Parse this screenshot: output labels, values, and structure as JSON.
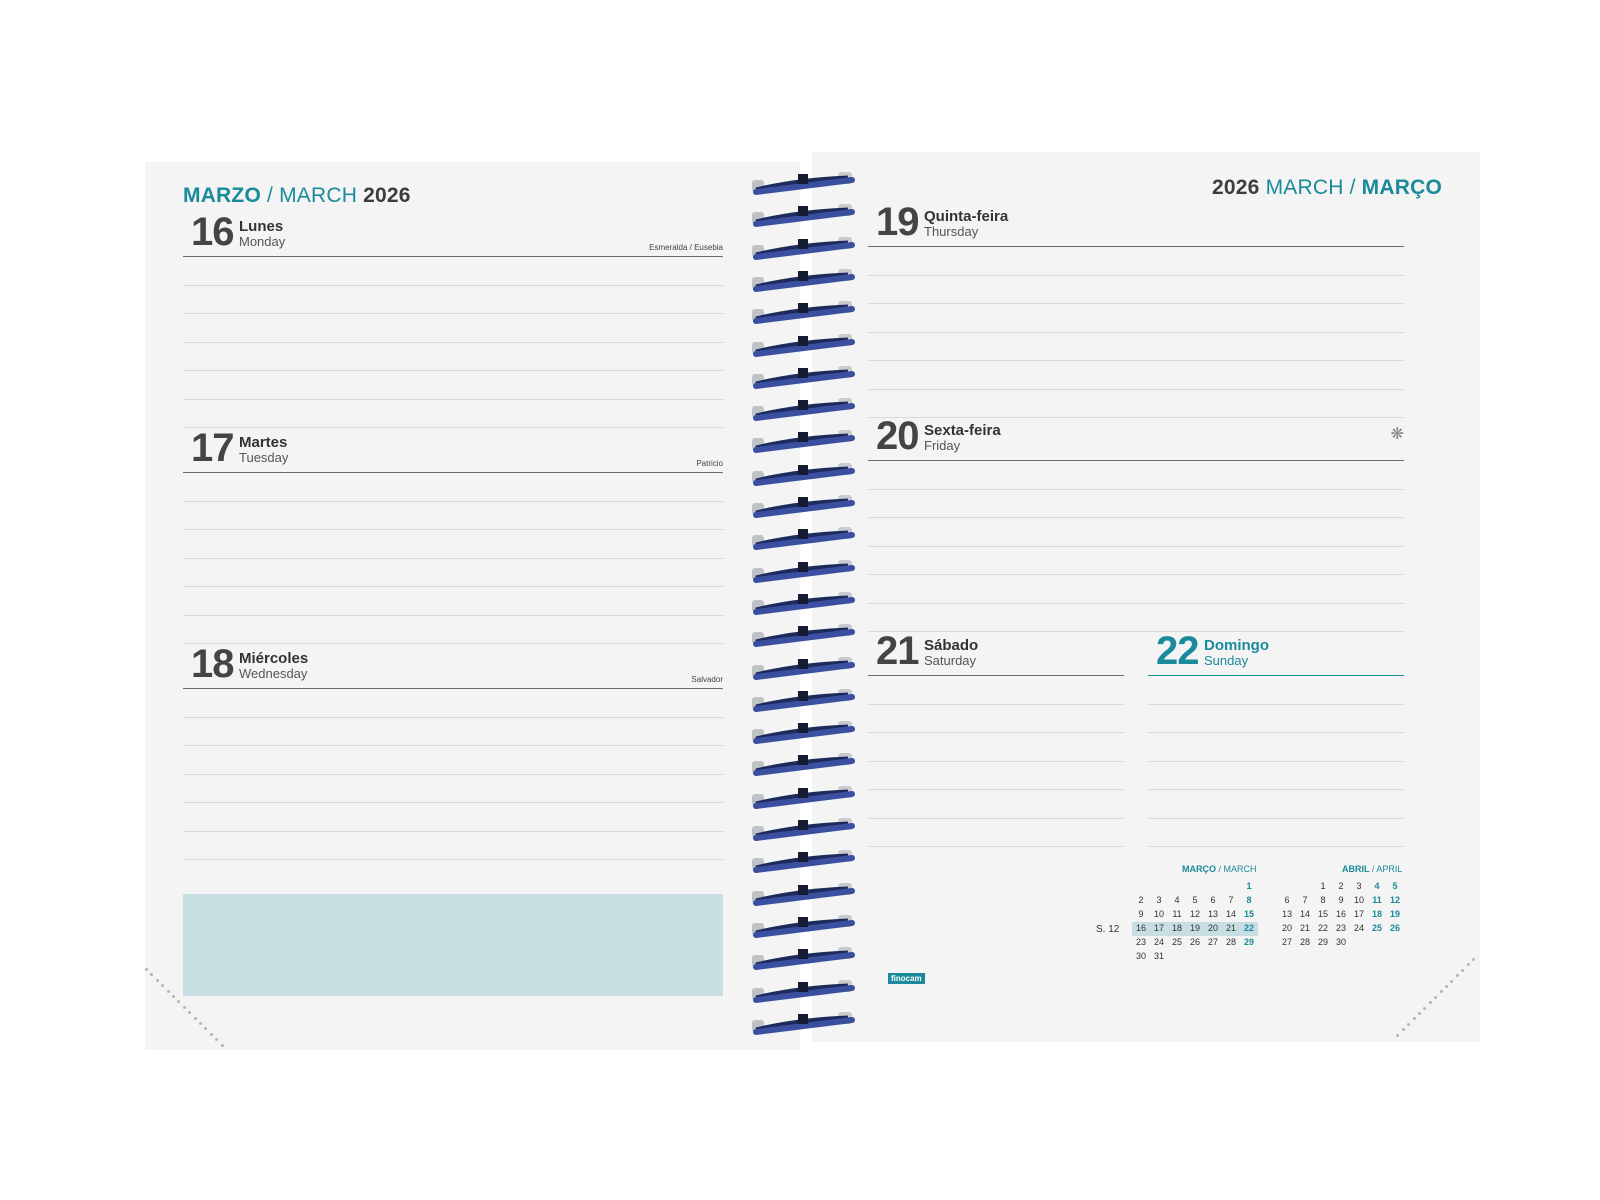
{
  "colors": {
    "accent": "#1a8a9c",
    "page": "#f3f4f3",
    "notes": "#c7dfe3",
    "spiral": "#3a4fa0"
  },
  "left": {
    "header": {
      "month_es": "MARZO",
      "sep": " / ",
      "month_en": "MARCH",
      "year": "2026"
    },
    "days": [
      {
        "num": "16",
        "name": "Lunes",
        "en": "Monday",
        "saint": "Esmeralda / Eusebia"
      },
      {
        "num": "17",
        "name": "Martes",
        "en": "Tuesday",
        "saint": "Patricio"
      },
      {
        "num": "18",
        "name": "Miércoles",
        "en": "Wednesday",
        "saint": "Salvador"
      }
    ]
  },
  "right": {
    "header": {
      "year": "2026",
      "month_en": "MARCH",
      "sep": " / ",
      "month_pt": "MARÇO"
    },
    "days": [
      {
        "num": "19",
        "name": "Quinta-feira",
        "en": "Thursday"
      },
      {
        "num": "20",
        "name": "Sexta-feira",
        "en": "Friday",
        "icon": "flower-icon"
      },
      {
        "num": "21",
        "name": "Sábado",
        "en": "Saturday"
      },
      {
        "num": "22",
        "name": "Domingo",
        "en": "Sunday"
      }
    ],
    "logo": "finocam",
    "week_label": "S. 12",
    "mini_march": {
      "title_pt": "MARÇO",
      "title_en": "/ MARCH",
      "rows": [
        [
          "",
          "",
          "",
          "",
          "",
          "",
          "1"
        ],
        [
          "2",
          "3",
          "4",
          "5",
          "6",
          "7",
          "8"
        ],
        [
          "9",
          "10",
          "11",
          "12",
          "13",
          "14",
          "15"
        ],
        [
          "16",
          "17",
          "18",
          "19",
          "20",
          "21",
          "22"
        ],
        [
          "23",
          "24",
          "25",
          "26",
          "27",
          "28",
          "29"
        ],
        [
          "30",
          "31",
          "",
          "",
          "",
          "",
          ""
        ]
      ]
    },
    "mini_april": {
      "title_pt": "ABRIL",
      "title_en": "/ APRIL",
      "rows": [
        [
          "",
          "",
          "1",
          "2",
          "3",
          "4",
          "5"
        ],
        [
          "6",
          "7",
          "8",
          "9",
          "10",
          "11",
          "12"
        ],
        [
          "13",
          "14",
          "15",
          "16",
          "17",
          "18",
          "19"
        ],
        [
          "20",
          "21",
          "22",
          "23",
          "24",
          "25",
          "26"
        ],
        [
          "27",
          "28",
          "29",
          "30",
          "",
          "",
          ""
        ]
      ]
    }
  }
}
